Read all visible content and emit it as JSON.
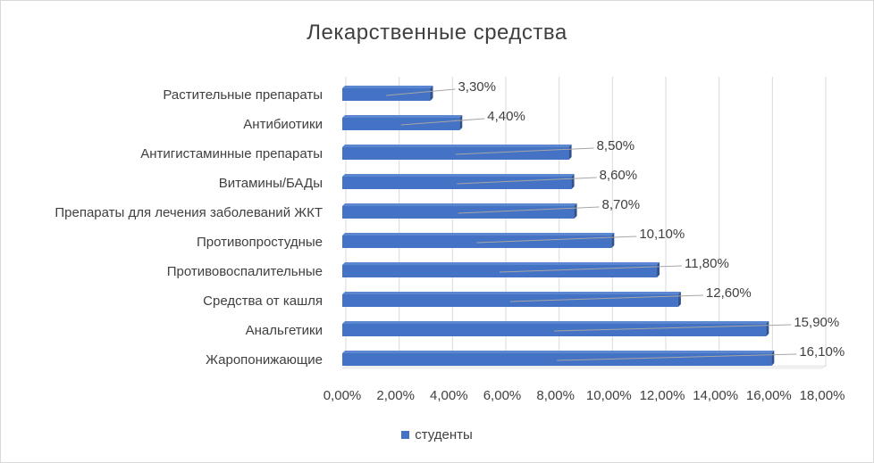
{
  "chart_data": {
    "type": "bar",
    "orientation": "horizontal",
    "style": "3d",
    "title": "Лекарственные средства",
    "categories": [
      "Растительные препараты",
      "Антибиотики",
      "Антигистаминные препараты",
      "Витамины/БАДы",
      "Препараты для лечения заболеваний ЖКТ",
      "Противопростудные",
      "Противовоспалительные",
      "Средства от кашля",
      "Анальгетики",
      "Жаропонижающие"
    ],
    "series": [
      {
        "name": "студенты",
        "color": "#4472c4",
        "values": [
          3.3,
          4.4,
          8.5,
          8.6,
          8.7,
          10.1,
          11.8,
          12.6,
          15.9,
          16.1
        ],
        "labels": [
          "3,30%",
          "4,40%",
          "8,50%",
          "8,60%",
          "8,70%",
          "10,10%",
          "11,80%",
          "12,60%",
          "15,90%",
          "16,10%"
        ]
      }
    ],
    "xlim": [
      0,
      18
    ],
    "xticks": [
      0,
      2,
      4,
      6,
      8,
      10,
      12,
      14,
      16,
      18
    ],
    "xtick_labels": [
      "0,00%",
      "2,00%",
      "4,00%",
      "6,00%",
      "8,00%",
      "10,00%",
      "12,00%",
      "14,00%",
      "16,00%",
      "18,00%"
    ],
    "grid": "vertical",
    "legend_position": "bottom"
  }
}
